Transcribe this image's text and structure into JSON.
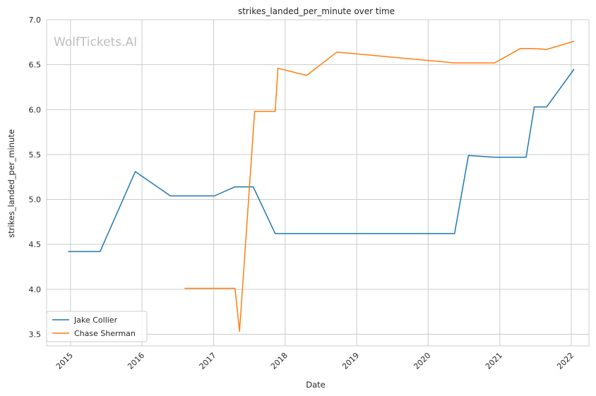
{
  "chart_data": {
    "type": "line",
    "title": "strikes_landed_per_minute over time",
    "xlabel": "Date",
    "ylabel": "strikes_landed_per_minute",
    "watermark": "WolfTickets.AI",
    "x_ticks": [
      "2015",
      "2016",
      "2017",
      "2018",
      "2019",
      "2020",
      "2021",
      "2022"
    ],
    "y_ticks": [
      "3.5",
      "4.0",
      "4.5",
      "5.0",
      "5.5",
      "6.0",
      "6.5",
      "7.0"
    ],
    "xlim": [
      "2014-09-01",
      "2022-04-01"
    ],
    "ylim": [
      3.37,
      7.0
    ],
    "grid": true,
    "legend_position": "lower-left",
    "series": [
      {
        "name": "Jake Collier",
        "color": "#1f77b4",
        "points": [
          [
            "2014-12-20",
            4.42
          ],
          [
            "2015-06-01",
            4.42
          ],
          [
            "2015-11-28",
            5.31
          ],
          [
            "2016-05-25",
            5.04
          ],
          [
            "2017-01-05",
            5.04
          ],
          [
            "2017-04-20",
            5.14
          ],
          [
            "2017-07-22",
            5.14
          ],
          [
            "2017-11-11",
            4.62
          ],
          [
            "2020-05-15",
            4.62
          ],
          [
            "2020-07-25",
            5.49
          ],
          [
            "2020-12-05",
            5.47
          ],
          [
            "2021-05-15",
            5.47
          ],
          [
            "2021-06-26",
            6.03
          ],
          [
            "2021-08-28",
            6.03
          ],
          [
            "2022-01-15",
            6.45
          ]
        ]
      },
      {
        "name": "Chase Sherman",
        "color": "#ff7f0e",
        "points": [
          [
            "2016-08-05",
            4.01
          ],
          [
            "2017-04-20",
            4.01
          ],
          [
            "2017-05-13",
            3.53
          ],
          [
            "2017-07-29",
            5.98
          ],
          [
            "2017-11-11",
            5.98
          ],
          [
            "2017-11-25",
            6.46
          ],
          [
            "2018-04-21",
            6.38
          ],
          [
            "2018-09-22",
            6.64
          ],
          [
            "2020-05-15",
            6.52
          ],
          [
            "2020-12-05",
            6.52
          ],
          [
            "2021-04-17",
            6.68
          ],
          [
            "2021-06-19",
            6.68
          ],
          [
            "2021-08-28",
            6.67
          ],
          [
            "2022-01-15",
            6.76
          ]
        ]
      }
    ]
  }
}
